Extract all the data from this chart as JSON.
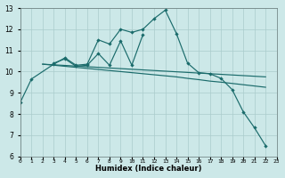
{
  "xlabel": "Humidex (Indice chaleur)",
  "background_color": "#cce8e8",
  "grid_color": "#aacccc",
  "line_color": "#1a6b6b",
  "xlim": [
    0,
    23
  ],
  "ylim": [
    6,
    13
  ],
  "yticks": [
    6,
    7,
    8,
    9,
    10,
    11,
    12,
    13
  ],
  "xtick_labels": [
    "0",
    "1",
    "2",
    "3",
    "4",
    "5",
    "6",
    "7",
    "8",
    "9",
    "10",
    "11",
    "12",
    "13",
    "14",
    "15",
    "16",
    "17",
    "18",
    "19",
    "20",
    "21",
    "22",
    "23"
  ],
  "s1_x": [
    0,
    1,
    3,
    4,
    5,
    6,
    7,
    8,
    9,
    10,
    11,
    12,
    13,
    14,
    15,
    16,
    17,
    18,
    19,
    20,
    21,
    22
  ],
  "s1_y": [
    8.55,
    9.65,
    10.35,
    10.65,
    10.3,
    10.35,
    11.5,
    11.3,
    12.0,
    11.85,
    12.0,
    12.5,
    12.9,
    11.8,
    10.4,
    9.95,
    9.9,
    9.68,
    9.15,
    8.1,
    7.35,
    6.5
  ],
  "s2_x": [
    2,
    3,
    4,
    5,
    6,
    7,
    8,
    9,
    10,
    11
  ],
  "s2_y": [
    null,
    10.4,
    10.6,
    10.25,
    10.3,
    10.85,
    10.3,
    11.45,
    10.3,
    11.75
  ],
  "s3_x": [
    2,
    3,
    4,
    5,
    6,
    7,
    8,
    9,
    10,
    11,
    12,
    13,
    14,
    15,
    16,
    17,
    18,
    19,
    20,
    21,
    22
  ],
  "s3_y": [
    10.35,
    10.3,
    10.25,
    10.2,
    10.15,
    10.1,
    10.05,
    10.0,
    9.95,
    9.9,
    9.85,
    9.8,
    9.75,
    9.68,
    9.62,
    9.55,
    9.5,
    9.44,
    9.38,
    9.32,
    9.26
  ],
  "s4_x": [
    2,
    3,
    4,
    5,
    6,
    7,
    8,
    9,
    10,
    11,
    12,
    13,
    14,
    15,
    16,
    17,
    18,
    19,
    20,
    21,
    22
  ],
  "s4_y": [
    10.35,
    10.32,
    10.29,
    10.26,
    10.23,
    10.2,
    10.17,
    10.14,
    10.11,
    10.08,
    10.05,
    10.02,
    9.99,
    9.96,
    9.93,
    9.9,
    9.87,
    9.84,
    9.81,
    9.78,
    9.75
  ]
}
